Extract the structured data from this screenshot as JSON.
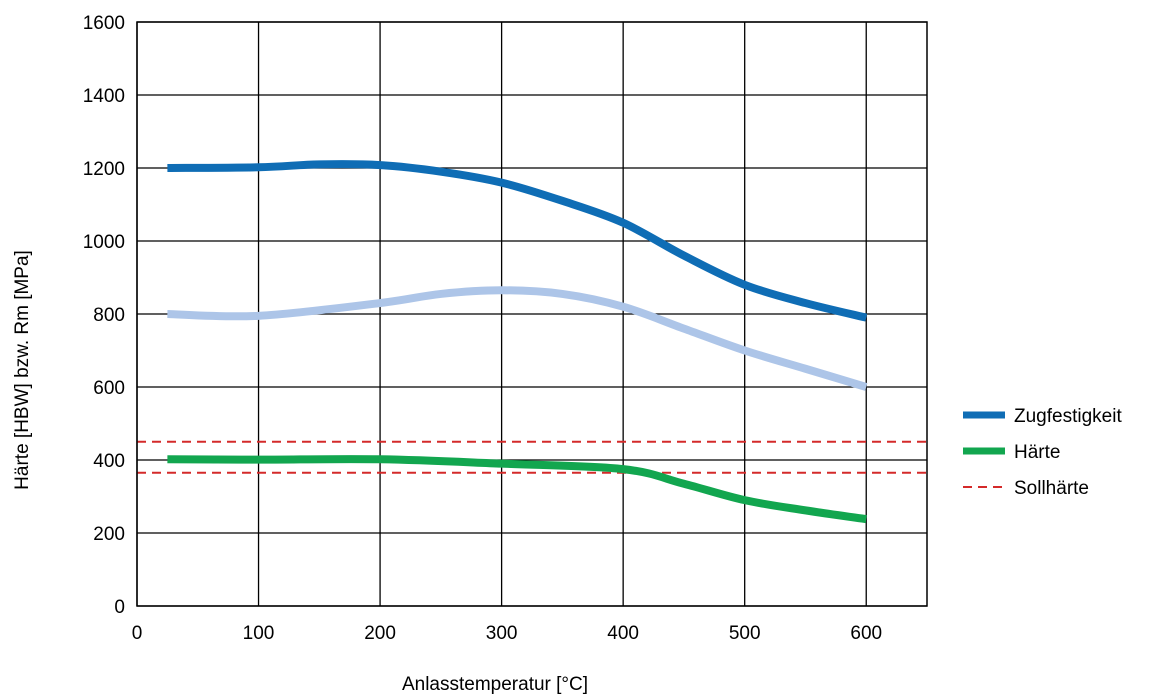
{
  "chart_data": {
    "type": "line",
    "title": "",
    "xlabel": "Anlasstemperatur [°C]",
    "ylabel": "Härte [HBW] bzw. Rm  [MPa]",
    "xlim": [
      0,
      650
    ],
    "ylim": [
      0,
      1600
    ],
    "xticks": [
      0,
      100,
      200,
      300,
      400,
      500,
      600
    ],
    "yticks": [
      0,
      200,
      400,
      600,
      800,
      1000,
      1200,
      1400,
      1600
    ],
    "grid": true,
    "legend_position": "right",
    "series": [
      {
        "name": "Zugfestigkeit",
        "color": "#0f6db5",
        "x": [
          25,
          100,
          150,
          200,
          250,
          300,
          350,
          400,
          450,
          500,
          550,
          600
        ],
        "y": [
          1200,
          1202,
          1210,
          1208,
          1190,
          1160,
          1110,
          1050,
          960,
          880,
          830,
          790
        ]
      },
      {
        "name": "",
        "color": "#adc5e8",
        "x": [
          25,
          100,
          200,
          250,
          300,
          350,
          400,
          450,
          500,
          550,
          600
        ],
        "y": [
          800,
          795,
          830,
          855,
          865,
          855,
          820,
          760,
          700,
          650,
          600
        ]
      },
      {
        "name": "Härte",
        "color": "#12a64f",
        "x": [
          25,
          100,
          200,
          300,
          400,
          450,
          500,
          550,
          600
        ],
        "y": [
          402,
          401,
          402,
          390,
          375,
          335,
          290,
          262,
          238
        ]
      }
    ],
    "reference_lines": [
      {
        "name": "Sollhärte",
        "color": "#d42a2a",
        "y": 450
      },
      {
        "name": "Sollhärte",
        "color": "#d42a2a",
        "y": 365
      }
    ],
    "legend": [
      "Zugfestigkeit",
      "Härte",
      "Sollhärte"
    ]
  }
}
